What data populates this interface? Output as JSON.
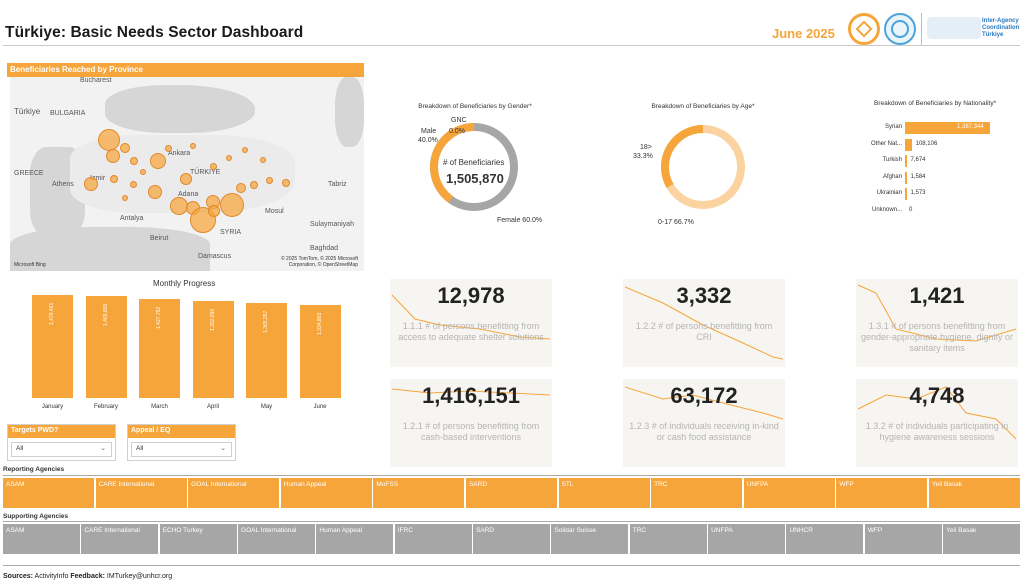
{
  "header": {
    "title": "Türkiye: Basic Needs Sector Dashboard",
    "period": "June 2025",
    "iac_text": "Inter-Agency Coordination Türkiye"
  },
  "map": {
    "title": "Beneficiaries Reached by Province",
    "labels": [
      "Bucharest",
      "BULGARIA",
      "Türkiye",
      "GREECE",
      "Athens",
      "Izmir",
      "Antalya",
      "TÜRKIYE",
      "Ankara",
      "Adana",
      "SYRIA",
      "Mosul",
      "Tabriz",
      "Sulaymaniyah",
      "Baghdad",
      "Damascus",
      "Beirut"
    ],
    "credit": "© 2025 TomTom, © 2025 Microsoft Corporation, © OpenStreetMap",
    "brand": "Microsoft Bing"
  },
  "gender": {
    "title": "Breakdown of Beneficiaries by Gender*",
    "center_label": "# of Beneficiaries",
    "center_value": "1,505,870",
    "segments": [
      {
        "name": "Male",
        "value": "40.0%"
      },
      {
        "name": "GNC",
        "value": "0.0%"
      },
      {
        "name": "Female",
        "value": "60.0%"
      }
    ]
  },
  "age": {
    "title": "Breakdown of Beneficiaries by Age*",
    "segments": [
      {
        "name": "18>",
        "value": "33.3%"
      },
      {
        "name": "0-17",
        "value": "66.7%"
      }
    ]
  },
  "nationality": {
    "title": "Breakdown of Beneficiaries by Nationality*",
    "rows": [
      {
        "name": "Syrian",
        "value": "1,387,344",
        "num": 1387344
      },
      {
        "name": "Other Nat...",
        "value": "108,106",
        "num": 108106
      },
      {
        "name": "Turkish",
        "value": "7,674",
        "num": 7674
      },
      {
        "name": "Afghan",
        "value": "1,584",
        "num": 1584
      },
      {
        "name": "Ukrainian",
        "value": "1,573",
        "num": 1573
      },
      {
        "name": "Unknown...",
        "value": "0",
        "num": 0
      }
    ]
  },
  "monthly": {
    "title": "Monthly Progress",
    "months": [
      {
        "name": "January",
        "value": "1,479,461",
        "num": 1479461
      },
      {
        "name": "February",
        "value": "1,469,805",
        "num": 1469805
      },
      {
        "name": "March",
        "value": "1,427,752",
        "num": 1427752
      },
      {
        "name": "April",
        "value": "1,392,690",
        "num": 1392690
      },
      {
        "name": "May",
        "value": "1,365,257",
        "num": 1365257
      },
      {
        "name": "June",
        "value": "1,334,803",
        "num": 1334803
      }
    ]
  },
  "filters": [
    {
      "label": "Targets PWD?",
      "value": "All"
    },
    {
      "label": "Appeal / EQ",
      "value": "All"
    }
  ],
  "kpis": [
    {
      "value": "12,978",
      "label": "1.1.1 # of persons benefitting from access to adequate shelter solutions"
    },
    {
      "value": "3,332",
      "label": "1.2.2 # of persons benefitting from CRI"
    },
    {
      "value": "1,421",
      "label": "1.3.1 # of persons benefitting from gender-appropriate hygiene, dignity or sanitary items"
    },
    {
      "value": "1,416,151",
      "label": "1.2.1 # of persons benefitting from cash-based interventions"
    },
    {
      "value": "63,172",
      "label": "1.2.3 # of individuals receiving in-kind or cash food assistance"
    },
    {
      "value": "4,748",
      "label": "1.3.2 # of individuals participating in hygiene awareness sessions"
    }
  ],
  "reporting": {
    "title": "Reporting Agencies",
    "items": [
      "ASAM",
      "CARE International",
      "GOAL International",
      "Human Appeal",
      "MoFSS",
      "SARD",
      "STL",
      "TRC",
      "UNFPA",
      "WFP",
      "Yeli Basak"
    ]
  },
  "supporting": {
    "title": "Supporting Agencies",
    "items": [
      "ASAM",
      "CARE International",
      "ECHO Turkey",
      "GOAL International",
      "Human Appeal",
      "IFRC",
      "SARD",
      "Solidar Suisse",
      "TRC",
      "UNFPA",
      "UNHCR",
      "WFP",
      "Yeli Basak"
    ]
  },
  "footer": {
    "sources_label": "Sources:",
    "sources_value": "ActivityInfo",
    "feedback_label": "Feedback:",
    "feedback_value": "IMTurkey@unhcr.org"
  },
  "colors": {
    "accent": "#f6a53a",
    "accent_light": "#fbd3a0",
    "grey": "#a6a6a6"
  }
}
